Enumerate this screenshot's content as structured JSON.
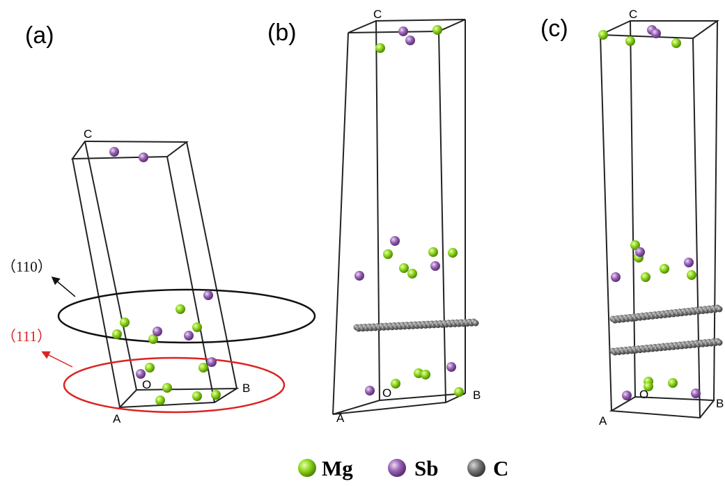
{
  "panels": [
    {
      "label": "(a)",
      "axes": {
        "c": "C",
        "a": "A",
        "b": "B",
        "o": "O"
      }
    },
    {
      "label": "(b)",
      "axes": {
        "c": "C",
        "a": "A",
        "b": "B",
        "o": "O"
      }
    },
    {
      "label": "(c)",
      "axes": {
        "c": "C",
        "a": "A",
        "b": "B",
        "o": "O"
      }
    }
  ],
  "annotations": {
    "plane_110": "（110）",
    "plane_111": "（111）"
  },
  "legend": [
    {
      "label": "Mg"
    },
    {
      "label": "Sb"
    },
    {
      "label": "C"
    }
  ]
}
